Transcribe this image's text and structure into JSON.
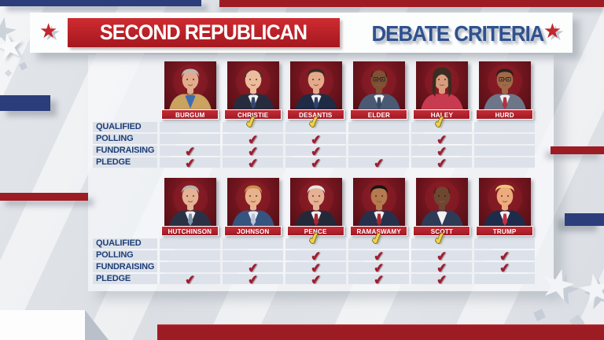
{
  "header": {
    "title_primary": "SECOND REPUBLICAN",
    "title_secondary": "DEBATE CRITERIA"
  },
  "criteria_labels": [
    "QUALIFIED",
    "POLLING",
    "FUNDRAISING",
    "PLEDGE"
  ],
  "rows": [
    {
      "candidates": [
        {
          "name": "BURGUM",
          "checks": [
            false,
            false,
            true,
            true
          ],
          "look": {
            "skin": "#e2ab8d",
            "hair": "#b8b8b6",
            "hairstyle": "short",
            "suit": "#c9a35f",
            "shirt": "#3f6cae",
            "tie": null,
            "glasses": false
          }
        },
        {
          "name": "CHRISTIE",
          "checks": [
            true,
            true,
            true,
            true
          ],
          "look": {
            "skin": "#edbc9d",
            "hair": "#453a33",
            "hairstyle": "balding",
            "suit": "#262c3d",
            "shirt": "#f2f2f2",
            "tie": "#33466c",
            "glasses": false
          }
        },
        {
          "name": "DESANTIS",
          "checks": [
            true,
            true,
            true,
            true
          ],
          "look": {
            "skin": "#e3aa8b",
            "hair": "#332c26",
            "hairstyle": "short",
            "suit": "#1f2b44",
            "shirt": "#f2f2f2",
            "tie": "#2c406a",
            "glasses": false
          }
        },
        {
          "name": "ELDER",
          "checks": [
            false,
            false,
            false,
            true
          ],
          "look": {
            "skin": "#7e5034",
            "hair": "#221c17",
            "hairstyle": "bald",
            "suit": "#4a5a74",
            "shirt": "#f2f2f2",
            "tie": "#3a4a66",
            "glasses": true
          }
        },
        {
          "name": "HALEY",
          "checks": [
            true,
            true,
            true,
            true
          ],
          "look": {
            "skin": "#d99d7e",
            "hair": "#3b2b22",
            "hairstyle": "long",
            "suit": "#c83a50",
            "shirt": null,
            "tie": null,
            "glasses": false
          }
        },
        {
          "name": "HURD",
          "checks": [
            false,
            false,
            false,
            false
          ],
          "look": {
            "skin": "#a06a48",
            "hair": "#26201a",
            "hairstyle": "short",
            "suit": "#6d7689",
            "shirt": "#f2f2f2",
            "tie": "#b03243",
            "glasses": true
          }
        }
      ]
    },
    {
      "candidates": [
        {
          "name": "HUTCHINSON",
          "checks": [
            false,
            false,
            false,
            true
          ],
          "look": {
            "skin": "#e6b294",
            "hair": "#b5b2ac",
            "hairstyle": "short",
            "suit": "#2b3145",
            "shirt": "#f2f2f2",
            "tie": "#8193a8",
            "glasses": false
          }
        },
        {
          "name": "JOHNSON",
          "checks": [
            false,
            false,
            true,
            true
          ],
          "look": {
            "skin": "#e9b28c",
            "hair": "#c98e52",
            "hairstyle": "short",
            "suit": "#35547f",
            "shirt": "#e8ecf2",
            "tie": "#b9c4d6",
            "glasses": false
          }
        },
        {
          "name": "PENCE",
          "checks": [
            true,
            true,
            true,
            true
          ],
          "look": {
            "skin": "#e6b093",
            "hair": "#e8e6e2",
            "hairstyle": "short",
            "suit": "#232939",
            "shirt": "#f2f2f2",
            "tie": "#a82532",
            "glasses": false
          }
        },
        {
          "name": "RAMASWAMY",
          "checks": [
            true,
            true,
            true,
            true
          ],
          "look": {
            "skin": "#b57a4e",
            "hair": "#171310",
            "hairstyle": "short",
            "suit": "#26304b",
            "shirt": "#f2f2f2",
            "tie": "#a82532",
            "glasses": false
          }
        },
        {
          "name": "SCOTT",
          "checks": [
            true,
            true,
            true,
            true
          ],
          "look": {
            "skin": "#6f4730",
            "hair": "#2e2118",
            "hairstyle": "bald",
            "suit": "#2d3b56",
            "shirt": "#f2f2f2",
            "tie": null,
            "glasses": false
          }
        },
        {
          "name": "TRUMP",
          "checks": [
            false,
            true,
            true,
            false
          ],
          "look": {
            "skin": "#edaa7d",
            "hair": "#e9c878",
            "hairstyle": "combover",
            "suit": "#1d2c4b",
            "shirt": "#f2f2f2",
            "tie": "#c13041",
            "glasses": false
          }
        }
      ]
    }
  ],
  "icons": {
    "star": "★",
    "diamond": "◆",
    "check": "✔"
  },
  "colors": {
    "navy_bar": "#2c3d7c",
    "dark_red_bar": "#9d1c24",
    "title_box_red": "#c1272d",
    "title_blue": "#2f518f",
    "banner_red": "#9e1b26",
    "row_band": "#dde2ea",
    "label_navy": "#1d3e77",
    "check_red": "#9e1e2f",
    "check_gold": "#eed34f",
    "photo_bg": "#6d141d"
  }
}
